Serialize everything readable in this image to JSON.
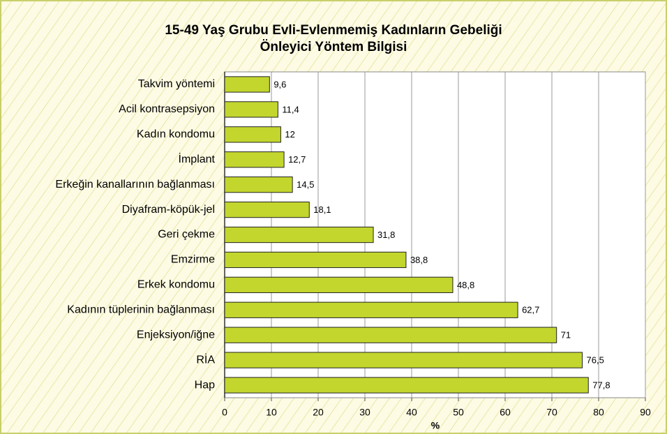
{
  "chart_data": {
    "type": "barh",
    "title": [
      "15-49 Yaş Grubu Evli-Evlenmemiş Kadınların Gebeliği",
      "Önleyici Yöntem Bilgisi"
    ],
    "xlabel": "%",
    "categories": [
      "Takvim yöntemi",
      "Acil kontrasepsiyon",
      "Kadın kondomu",
      "İmplant",
      "Erkeğin kanallarının bağlanması",
      "Diyafram-köpük-jel",
      "Geri çekme",
      "Emzirme",
      "Erkek kondomu",
      "Kadının tüplerinin bağlanması",
      "Enjeksiyon/iğne",
      "RİA",
      "Hap"
    ],
    "values": [
      9.6,
      11.4,
      12,
      12.7,
      14.5,
      18.1,
      31.8,
      38.8,
      48.8,
      62.7,
      71,
      76.5,
      77.8
    ],
    "value_labels": [
      "9,6",
      "11,4",
      "12",
      "12,7",
      "14,5",
      "18,1",
      "31,8",
      "38,8",
      "48,8",
      "62,7",
      "71",
      "76,5",
      "77,8"
    ],
    "color": "#c3d62e",
    "xlim": [
      0,
      90
    ],
    "xticks": [
      0,
      10,
      20,
      30,
      40,
      50,
      60,
      70,
      80,
      90
    ],
    "grid": true
  }
}
